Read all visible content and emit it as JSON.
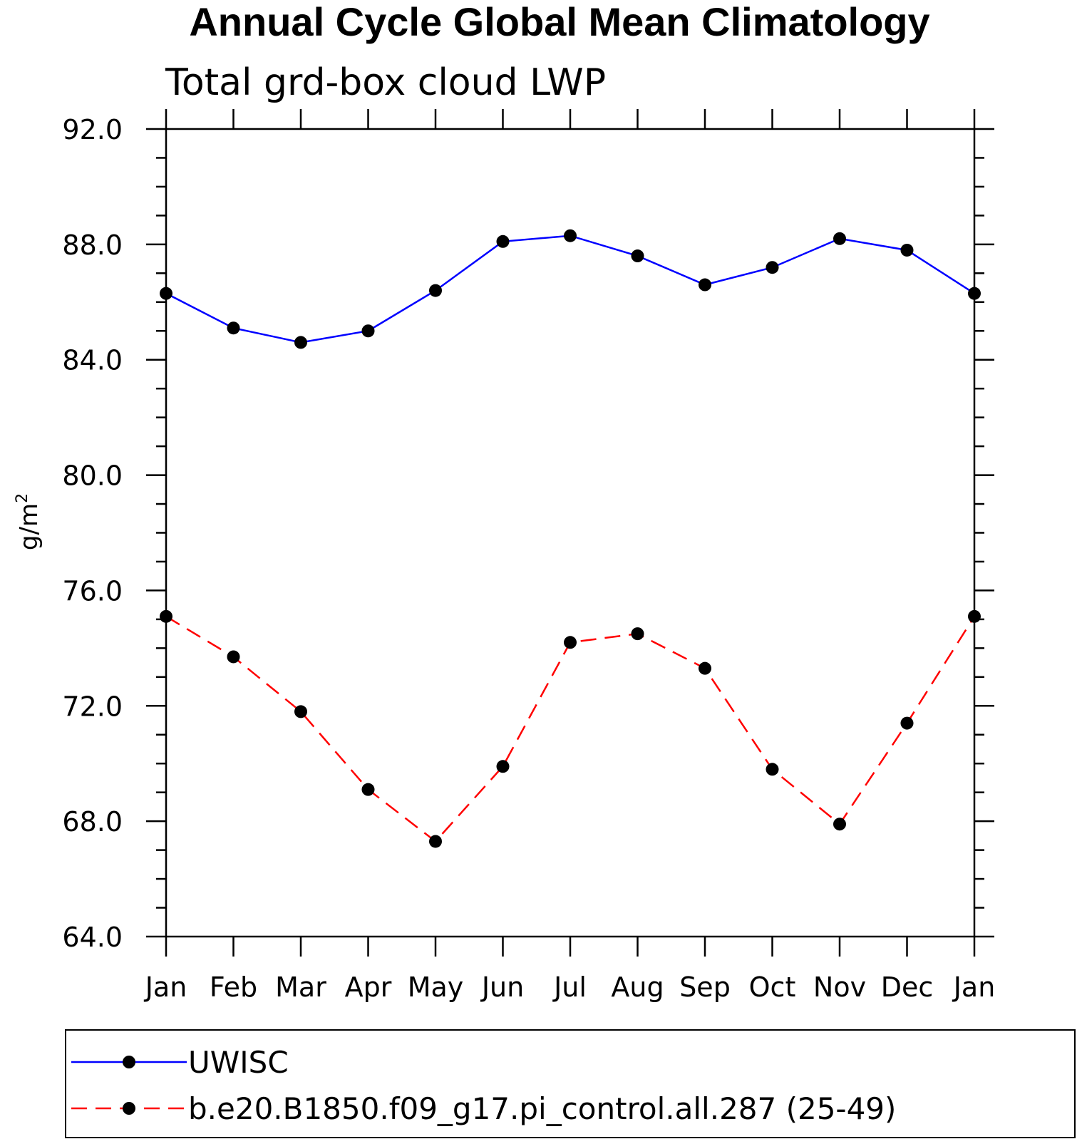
{
  "chart_data": {
    "type": "line",
    "title": "Annual Cycle Global Mean Climatology",
    "subtitle": "Total grd-box cloud LWP",
    "ylabel_base": "g/m",
    "ylabel_sup": "2",
    "xlabel": "",
    "categories": [
      "Jan",
      "Feb",
      "Mar",
      "Apr",
      "May",
      "Jun",
      "Jul",
      "Aug",
      "Sep",
      "Oct",
      "Nov",
      "Dec",
      "Jan"
    ],
    "ylim": [
      64,
      92
    ],
    "yticks": [
      "64.0",
      "68.0",
      "72.0",
      "76.0",
      "80.0",
      "84.0",
      "88.0",
      "92.0"
    ],
    "ytick_values": [
      64,
      68,
      72,
      76,
      80,
      84,
      88,
      92
    ],
    "minor_tick_step": 1,
    "grid": false,
    "legend_position": "bottom",
    "series": [
      {
        "name": "UWISC",
        "color": "#0000ff",
        "line_style": "solid",
        "marker": "filled-circle",
        "values": [
          86.3,
          85.1,
          84.6,
          85.0,
          86.4,
          88.1,
          88.3,
          87.6,
          86.6,
          87.2,
          88.2,
          87.8,
          86.3
        ]
      },
      {
        "name": "b.e20.B1850.f09_g17.pi_control.all.287 (25-49)",
        "color": "#ff0000",
        "line_style": "dashed",
        "marker": "filled-circle",
        "values": [
          75.1,
          73.7,
          71.8,
          69.1,
          67.3,
          69.9,
          74.2,
          74.5,
          73.3,
          69.8,
          67.9,
          71.4,
          75.1
        ]
      }
    ]
  }
}
